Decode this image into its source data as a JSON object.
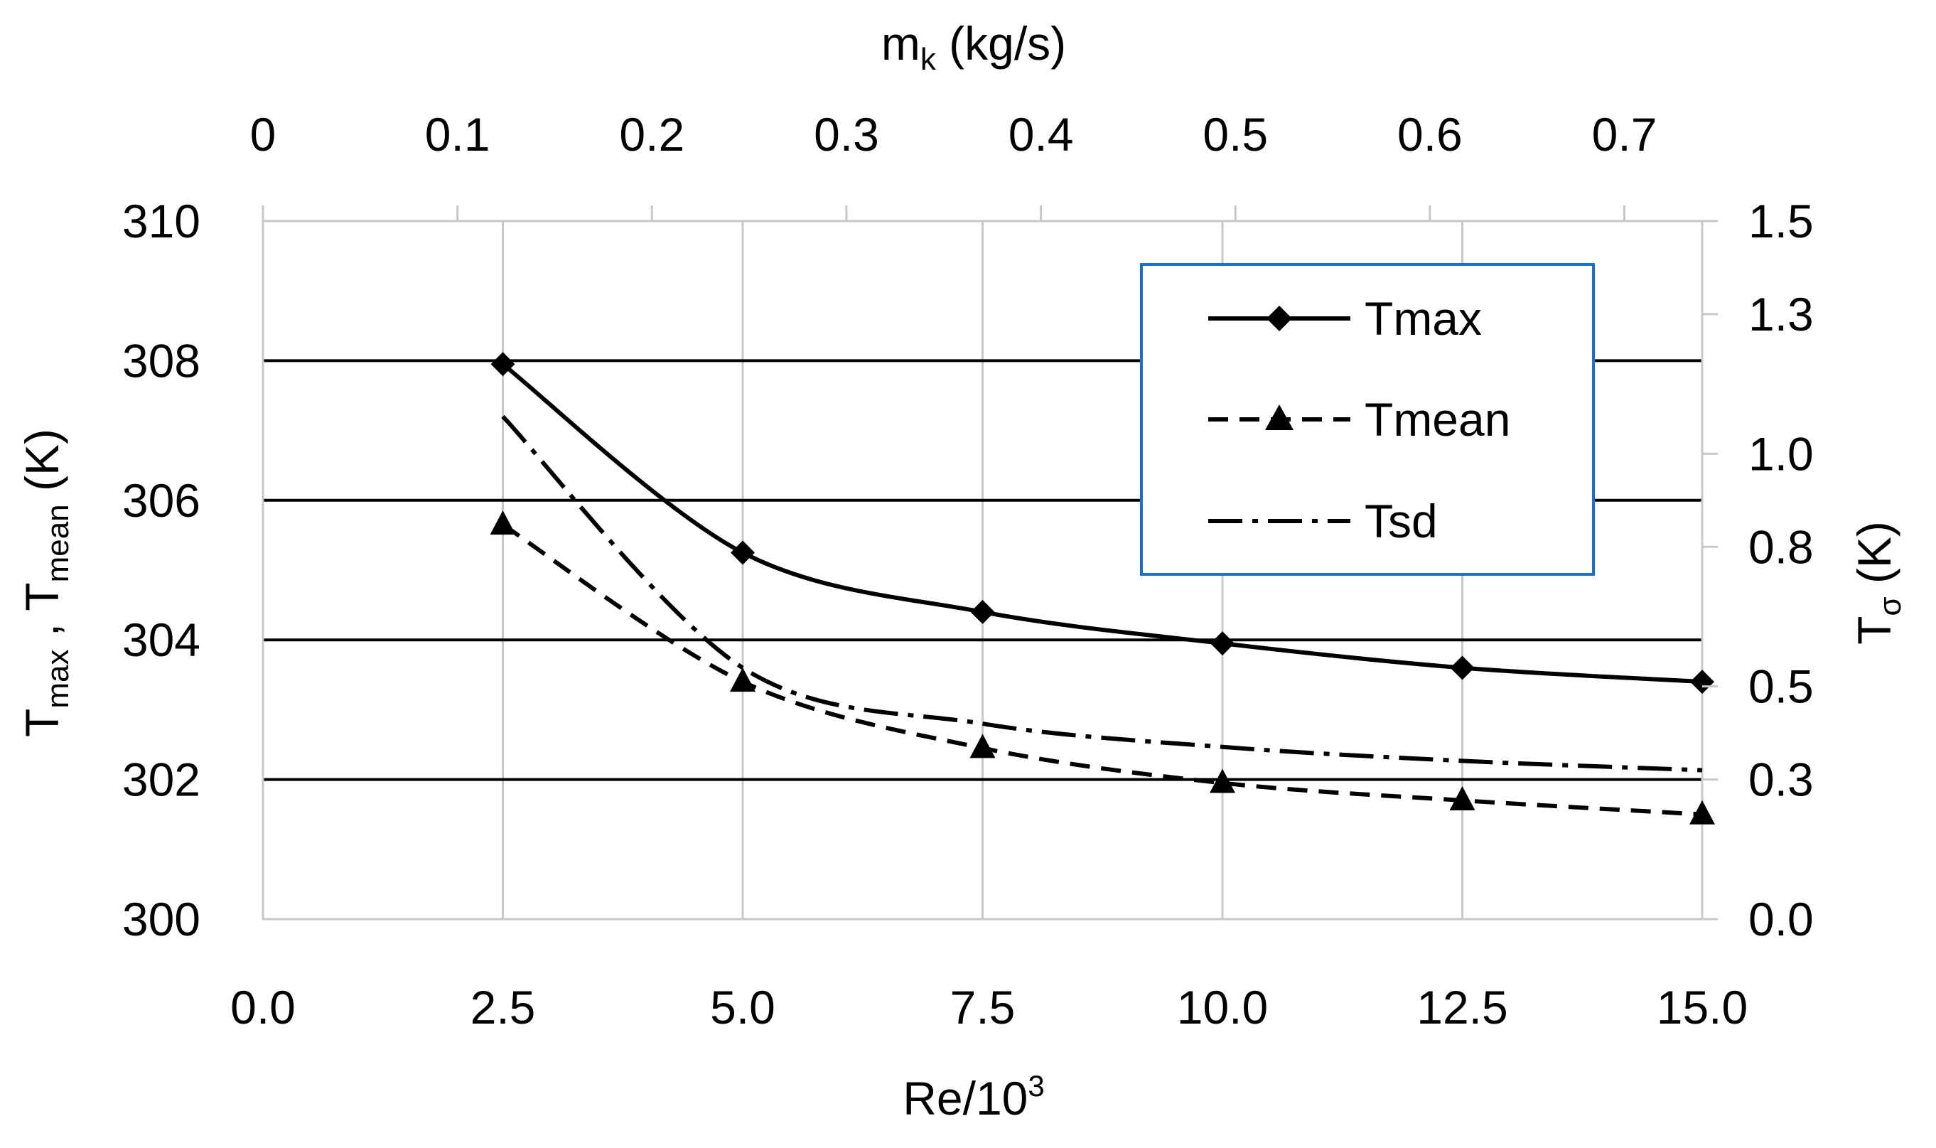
{
  "chart_data": {
    "type": "line",
    "x_bottom": {
      "label_base": "Re/10",
      "label_sup": "3",
      "ticks": [
        "0.0",
        "2.5",
        "5.0",
        "7.5",
        "10.0",
        "12.5",
        "15.0"
      ],
      "range": [
        0,
        15
      ]
    },
    "x_top": {
      "label_base": "m",
      "label_sub": "k",
      "label_unit": " (kg/s)",
      "ticks": [
        "0",
        "0.1",
        "0.2",
        "0.3",
        "0.4",
        "0.5",
        "0.6",
        "0.7"
      ],
      "range": [
        0,
        0.74
      ]
    },
    "y_left": {
      "label_t1": "T",
      "label_s1": "max",
      "label_sep": " , ",
      "label_t2": "T",
      "label_s2": "mean",
      "label_unit": " (K)",
      "ticks": [
        "300",
        "302",
        "304",
        "306",
        "308",
        "310"
      ],
      "range": [
        300,
        310
      ]
    },
    "y_right": {
      "label_t": "T",
      "label_s": "σ",
      "label_unit": " (K)",
      "ticks": [
        "0.0",
        "0.3",
        "0.5",
        "0.8",
        "1.0",
        "1.3",
        "1.5"
      ],
      "range": [
        0,
        1.5
      ]
    },
    "series": [
      {
        "name": "Tmax",
        "axis": "left",
        "style": "solid",
        "marker": "diamond",
        "x": [
          2.5,
          5.0,
          7.5,
          10.0,
          12.5,
          15.0
        ],
        "y": [
          307.95,
          305.25,
          304.4,
          303.95,
          303.6,
          303.4
        ]
      },
      {
        "name": "Tmean",
        "axis": "left",
        "style": "dashed",
        "marker": "triangle",
        "x": [
          2.5,
          5.0,
          7.5,
          10.0,
          12.5,
          15.0
        ],
        "y": [
          305.65,
          303.4,
          302.45,
          301.95,
          301.7,
          301.5
        ]
      },
      {
        "name": "Tsd",
        "axis": "right",
        "style": "dashdot",
        "marker": "none",
        "x": [
          2.5,
          5.0,
          7.5,
          10.0,
          12.5,
          15.0
        ],
        "y": [
          1.08,
          0.54,
          0.42,
          0.37,
          0.34,
          0.32
        ]
      }
    ],
    "legend": {
      "position": "top-right",
      "border_color": "#1f6fd1",
      "items": [
        "Tmax",
        "Tmean",
        "Tsd"
      ]
    },
    "colors": {
      "line": "#000000",
      "grid_major": "#000000",
      "grid_minor": "#c8c8c8"
    }
  }
}
